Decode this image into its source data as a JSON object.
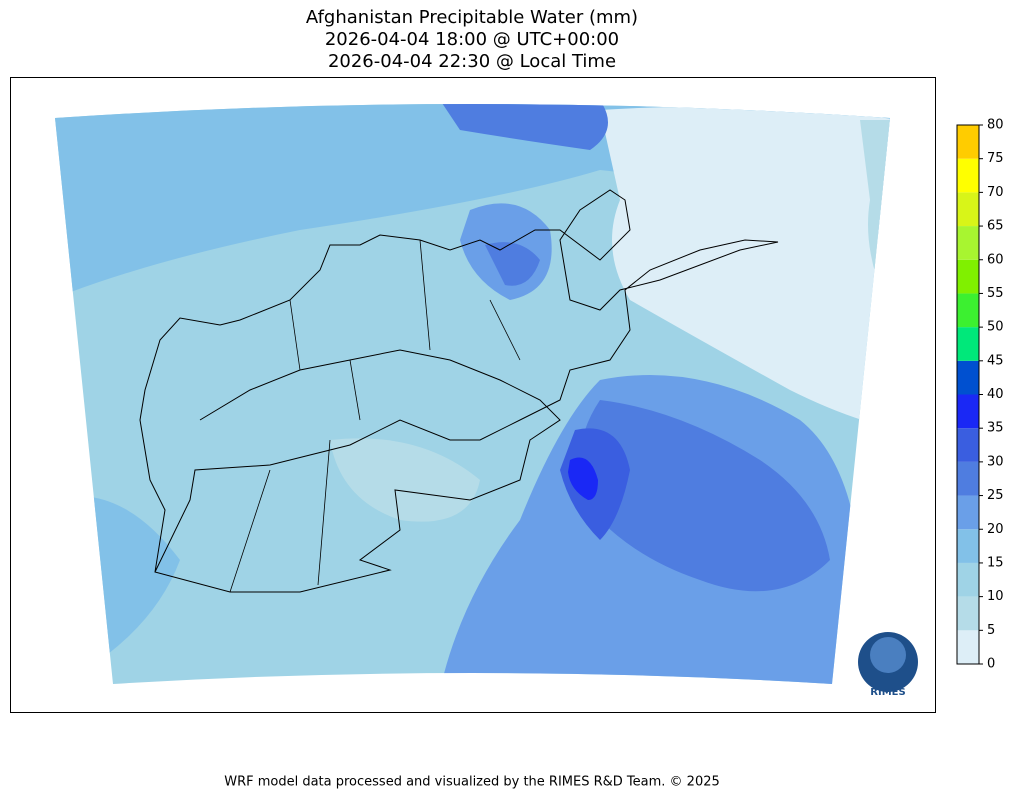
{
  "header": {
    "title_lines": [
      "Afghanistan Precipitable Water (mm)",
      "2026-04-04 18:00 @ UTC+00:00",
      "2026-04-04 22:30 @ Local Time"
    ]
  },
  "colorbar": {
    "ticks": [
      0,
      5,
      10,
      15,
      20,
      25,
      30,
      35,
      40,
      45,
      50,
      55,
      60,
      65,
      70,
      75,
      80
    ],
    "colors": [
      "#ddeef7",
      "#b5dce8",
      "#9fd3e6",
      "#82c1e8",
      "#6a9fe8",
      "#4f7de0",
      "#3a5ee0",
      "#1a28f5",
      "#0050d0",
      "#00e87a",
      "#3cf030",
      "#80f000",
      "#a8f530",
      "#d8f518",
      "#ffff00",
      "#ffcc00"
    ]
  },
  "logo": {
    "text": "RIMES"
  },
  "footer": {
    "text": "WRF model data processed and visualized by the RIMES R&D Team. © 2025"
  }
}
